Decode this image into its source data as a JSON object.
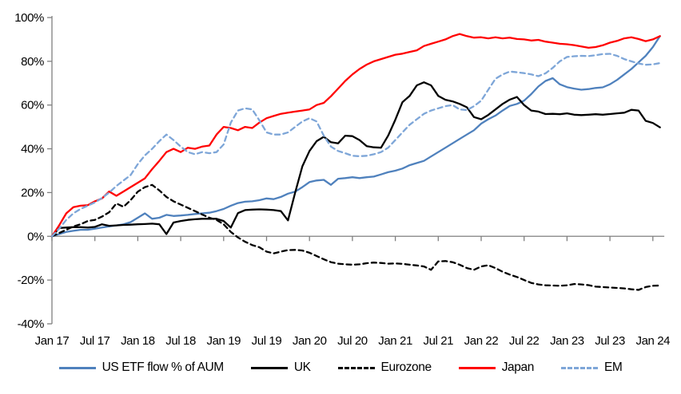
{
  "chart_data": {
    "type": "line",
    "title": "",
    "xlabel": "",
    "ylabel": "",
    "grid": false,
    "legend_position": "bottom",
    "axis_color": "#7f7f7f",
    "text_color": "#000000",
    "ylim": [
      -40,
      100
    ],
    "y_tick_values": [
      100,
      80,
      60,
      40,
      20,
      0,
      -20,
      -40
    ],
    "y_ticklabels": [
      "100%",
      "80%",
      "60%",
      "40%",
      "20%",
      "0%",
      "-20%",
      "-40%"
    ],
    "x_tick_months": [
      0,
      6,
      12,
      18,
      24,
      30,
      36,
      42,
      48,
      54,
      60,
      66,
      72,
      78,
      84
    ],
    "x_ticklabels": [
      "Jan 17",
      "Jul 17",
      "Jan 18",
      "Jul 18",
      "Jan 19",
      "Jul 19",
      "Jan 20",
      "Jul 20",
      "Jan 21",
      "Jul 21",
      "Jan 22",
      "Jul 22",
      "Jan 23",
      "Jul 23",
      "Jan 24"
    ],
    "x_unit": "months since Jan 2017, monthly samples",
    "series": [
      {
        "name": "US ETF flow % of AUM",
        "color": "#4f81bd",
        "dash": false,
        "values": [
          0,
          1,
          2,
          2.5,
          3,
          3,
          3.5,
          4,
          4.5,
          5,
          5.5,
          6.5,
          8.5,
          10.5,
          8,
          8.5,
          9.8,
          9.3,
          9.5,
          9.8,
          10.2,
          10.5,
          10.8,
          11.5,
          12.5,
          14,
          15.2,
          15.8,
          16,
          16.5,
          17.3,
          17,
          18,
          19.5,
          20.4,
          22.5,
          24.8,
          25.5,
          25.8,
          23.5,
          26.3,
          26.6,
          27,
          26.6,
          27,
          27.3,
          28.3,
          29.3,
          30,
          31,
          32.5,
          33.5,
          34.5,
          36.5,
          38.5,
          40.5,
          42.5,
          44.5,
          46.5,
          48.5,
          51.5,
          53.5,
          55.2,
          57.5,
          59.6,
          60.5,
          62,
          65,
          68.5,
          71,
          72.3,
          69.5,
          68.2,
          67.5,
          67,
          67.3,
          67.8,
          68.1,
          69.5,
          71.5,
          74,
          76.5,
          79.5,
          82.5,
          86.5,
          91.5
        ]
      },
      {
        "name": "UK",
        "color": "#000000",
        "dash": false,
        "values": [
          0,
          3.8,
          4,
          4.2,
          4.2,
          4,
          4.3,
          5.5,
          4.8,
          5,
          5.2,
          5.3,
          5.5,
          5.6,
          5.8,
          5.5,
          1,
          6.3,
          7,
          7.5,
          7.8,
          8,
          8,
          8,
          7,
          4,
          10.6,
          12,
          12.2,
          12.3,
          12.2,
          12,
          11.5,
          7.3,
          20,
          32,
          39,
          43.5,
          45.5,
          43,
          42.5,
          46,
          45.8,
          44,
          41.2,
          40.7,
          40.5,
          46,
          53.3,
          61.3,
          64.2,
          69,
          70.4,
          69,
          64.2,
          62.4,
          61.7,
          60.5,
          59,
          54.5,
          53.5,
          55.5,
          58,
          60.5,
          62.5,
          63.7,
          60,
          57.5,
          57,
          55.9,
          56,
          55.8,
          56.2,
          55.6,
          55.4,
          55.6,
          55.8,
          55.6,
          55.9,
          56.2,
          56.5,
          57.8,
          57.5,
          52.8,
          51.8,
          49.8
        ]
      },
      {
        "name": "Eurozone",
        "color": "#000000",
        "dash": true,
        "values": [
          0,
          1.5,
          3,
          4.5,
          5.5,
          7,
          7.5,
          9,
          11,
          15,
          13.5,
          16.5,
          20.4,
          22.5,
          23.5,
          21,
          18,
          16,
          14.5,
          13,
          11.5,
          10,
          8.5,
          7.5,
          5.5,
          2,
          -0.5,
          -2.5,
          -4,
          -5,
          -7,
          -7.8,
          -7,
          -6.3,
          -6.2,
          -6.5,
          -7.5,
          -9,
          -10.5,
          -11.8,
          -12.5,
          -12.8,
          -13,
          -12.8,
          -12.3,
          -12,
          -12.2,
          -12.5,
          -12.4,
          -12.6,
          -13,
          -13.3,
          -13.8,
          -15.3,
          -11.5,
          -11.3,
          -11.8,
          -13,
          -14.5,
          -15.3,
          -13.8,
          -13.2,
          -14.5,
          -16.2,
          -17.5,
          -18.6,
          -20,
          -21.3,
          -22,
          -22.4,
          -22.5,
          -22.6,
          -22.4,
          -21.8,
          -22,
          -22.3,
          -23,
          -23.2,
          -23.4,
          -23.6,
          -23.8,
          -24.2,
          -24.5,
          -23.2,
          -22.6,
          -22.5
        ]
      },
      {
        "name": "Japan",
        "color": "#ff0000",
        "dash": false,
        "values": [
          0,
          5,
          10.5,
          13.3,
          14,
          14.2,
          16,
          17.3,
          20.5,
          18.5,
          20.5,
          22.5,
          24.5,
          26.5,
          30.7,
          34.5,
          38.5,
          40,
          38.5,
          40.5,
          40,
          41,
          41.5,
          46.5,
          50,
          49.5,
          48.5,
          50,
          49.5,
          52,
          54,
          55,
          56,
          56.5,
          57,
          57.5,
          58,
          60,
          61,
          64,
          67.5,
          71,
          74,
          76.5,
          78.5,
          80,
          81,
          82,
          83,
          83.5,
          84.3,
          85,
          87,
          88,
          89,
          90,
          91.5,
          92.5,
          91.5,
          90.8,
          91,
          90.5,
          91,
          90.5,
          90.8,
          90.2,
          90,
          89.5,
          89.8,
          89,
          88.5,
          88,
          87.8,
          87.4,
          86.8,
          86.2,
          86.5,
          87.3,
          88.5,
          89.3,
          90.5,
          91,
          90.2,
          89.2,
          90,
          91.5
        ]
      },
      {
        "name": "EM",
        "color": "#7ea6d8",
        "dash": true,
        "values": [
          0,
          3.5,
          7.5,
          10.5,
          12.5,
          14,
          15.5,
          17.5,
          20,
          23,
          25.5,
          28,
          33,
          37,
          40,
          43.5,
          46.5,
          44,
          41,
          38.5,
          37.5,
          38.5,
          38,
          38.5,
          42,
          52,
          57.5,
          58.5,
          58,
          53,
          47.5,
          46.5,
          46.5,
          47.5,
          50,
          52.5,
          54,
          52.5,
          46,
          41,
          39,
          38,
          36.8,
          36.6,
          36.8,
          37.5,
          38.5,
          40.5,
          44,
          47.5,
          51,
          53.5,
          56,
          57.5,
          58.5,
          59.5,
          60,
          58,
          57.7,
          59.5,
          62,
          67,
          72,
          74,
          75.3,
          75,
          74.6,
          74,
          73.2,
          74.5,
          77,
          80,
          82,
          82.3,
          82.5,
          82.4,
          82.8,
          83.3,
          83.4,
          82.5,
          81,
          80,
          79,
          78.4,
          78.6,
          79.2
        ]
      }
    ]
  }
}
